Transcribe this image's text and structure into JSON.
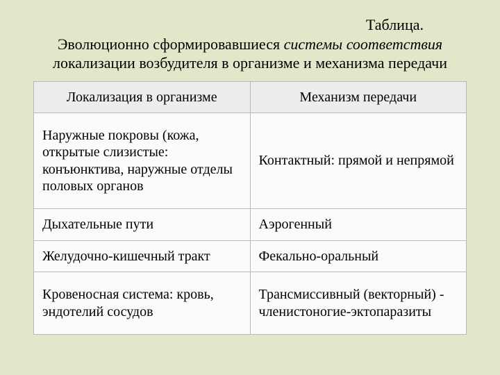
{
  "title": {
    "label": "Таблица.",
    "line1_pre": "Эволюционно сформировавшиеся ",
    "line1_italic": "системы соответствия",
    "line1_post": " локализации возбудителя в организме и механизма передачи"
  },
  "table": {
    "background_color": "#fbfbfb",
    "border_color": "#b9b9b9",
    "header_bg": "#ededed",
    "columns": [
      {
        "label": "Локализация в организме",
        "width_pct": 50,
        "align": "center"
      },
      {
        "label": "Механизм передачи",
        "width_pct": 50,
        "align": "center"
      }
    ],
    "rows": [
      {
        "height": "tall",
        "cells": [
          "Наружные покровы (кожа, открытые слизистые: конъюнктива, наружные отделы половых органов",
          "Контактный: прямой и непрямой"
        ]
      },
      {
        "height": "normal",
        "cells": [
          "Дыхательные пути",
          "Аэрогенный"
        ]
      },
      {
        "height": "normal",
        "cells": [
          "Желудочно-кишечный тракт",
          "Фекально-оральный"
        ]
      },
      {
        "height": "tall",
        "cells": [
          "Кровеносная система: кровь, эндотелий сосудов",
          "Трансмиссивный (векторный) - членистоногие-эктопаразиты"
        ]
      }
    ]
  },
  "page": {
    "background_color": "#e0e8c9",
    "title_fontsize_pt": 17,
    "body_fontsize_pt": 15,
    "font_family": "Times New Roman"
  }
}
